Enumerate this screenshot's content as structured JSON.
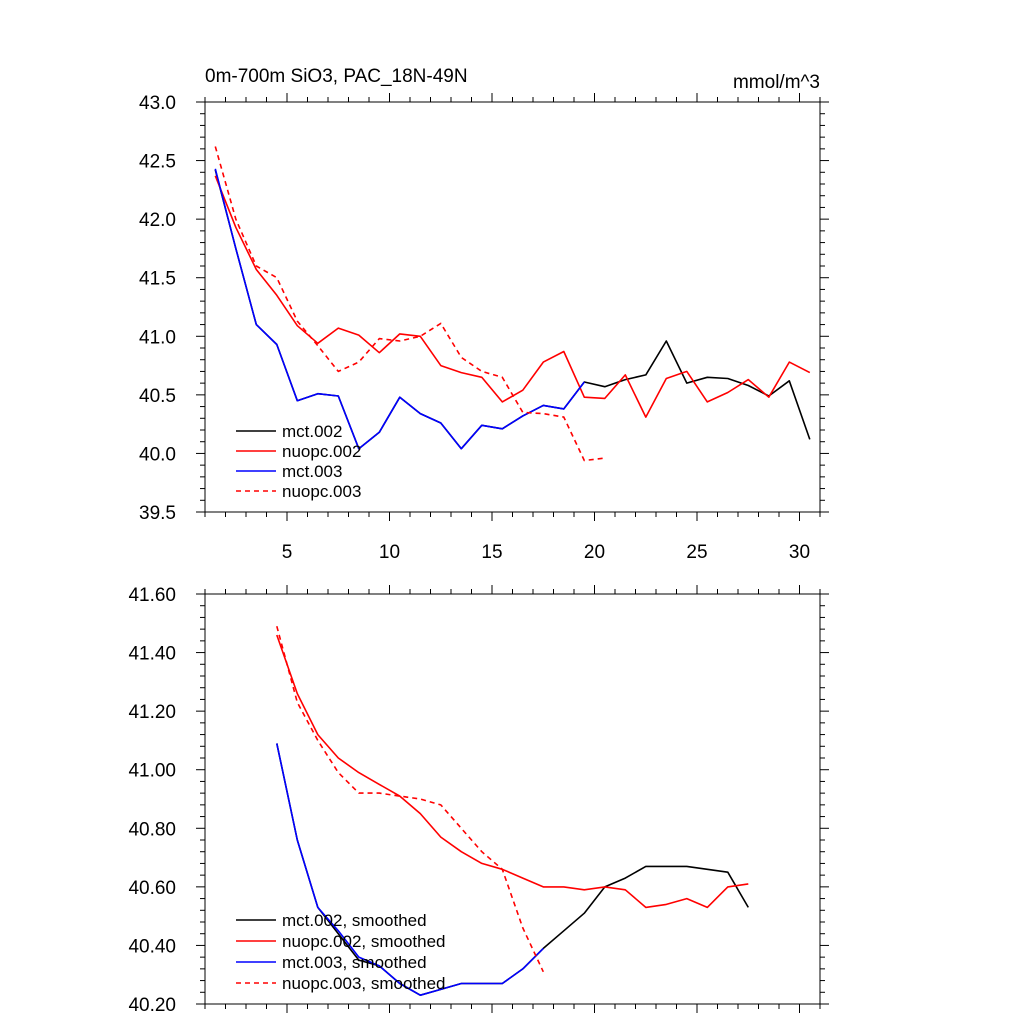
{
  "chart_data": [
    {
      "type": "line",
      "title": "0m-700m SiO3, PAC_18N-49N",
      "units": "mmol/m^3",
      "xlim": [
        1,
        31
      ],
      "ylim": [
        39.5,
        43.0
      ],
      "x_ticks": [
        5,
        10,
        15,
        20,
        25,
        30
      ],
      "y_ticks": [
        "39.5",
        "40.0",
        "40.5",
        "41.0",
        "41.5",
        "42.0",
        "42.5",
        "43.0"
      ],
      "legend_position": "bottom-left",
      "series": [
        {
          "name": "mct.002",
          "color": "#000000",
          "dash": "solid",
          "x": [
            1.5,
            2.5,
            3.5,
            4.5,
            5.5,
            6.5,
            7.5,
            8.5,
            9.5,
            10.5,
            11.5,
            12.5,
            13.5,
            14.5,
            15.5,
            16.5,
            17.5,
            18.5,
            19.5,
            20.5,
            21.5,
            22.5,
            23.5,
            24.5,
            25.5,
            26.5,
            27.5,
            28.5,
            29.5,
            30.5
          ],
          "y": [
            42.42,
            41.75,
            41.1,
            40.93,
            40.45,
            40.51,
            40.49,
            40.04,
            40.18,
            40.48,
            40.34,
            40.26,
            40.04,
            40.24,
            40.21,
            40.32,
            40.41,
            40.38,
            40.61,
            40.57,
            40.63,
            40.67,
            40.96,
            40.6,
            40.65,
            40.64,
            40.58,
            40.49,
            40.62,
            40.12
          ]
        },
        {
          "name": "nuopc.002",
          "color": "#ff0000",
          "dash": "solid",
          "x": [
            1.5,
            2.5,
            3.5,
            4.5,
            5.5,
            6.5,
            7.5,
            8.5,
            9.5,
            10.5,
            11.5,
            12.5,
            13.5,
            14.5,
            15.5,
            16.5,
            17.5,
            18.5,
            19.5,
            20.5,
            21.5,
            22.5,
            23.5,
            24.5,
            25.5,
            26.5,
            27.5,
            28.5,
            29.5,
            30.5
          ],
          "y": [
            42.37,
            41.93,
            41.57,
            41.35,
            41.09,
            40.94,
            41.07,
            41.01,
            40.86,
            41.02,
            41.0,
            40.75,
            40.69,
            40.65,
            40.44,
            40.54,
            40.78,
            40.87,
            40.48,
            40.47,
            40.67,
            40.31,
            40.64,
            40.7,
            40.44,
            40.52,
            40.63,
            40.48,
            40.78,
            40.69
          ]
        },
        {
          "name": "mct.003",
          "color": "#0000ff",
          "dash": "solid",
          "x": [
            1.5,
            2.5,
            3.5,
            4.5,
            5.5,
            6.5,
            7.5,
            8.5,
            9.5,
            10.5,
            11.5,
            12.5,
            13.5,
            14.5,
            15.5,
            16.5,
            17.5,
            18.5,
            19.5
          ],
          "y": [
            42.43,
            41.75,
            41.1,
            40.93,
            40.45,
            40.51,
            40.49,
            40.04,
            40.18,
            40.48,
            40.34,
            40.26,
            40.04,
            40.24,
            40.21,
            40.32,
            40.41,
            40.38,
            40.61
          ]
        },
        {
          "name": "nuopc.003",
          "color": "#ff0000",
          "dash": "dashed",
          "x": [
            1.5,
            2.5,
            3.5,
            4.5,
            5.5,
            6.5,
            7.5,
            8.5,
            9.5,
            10.5,
            11.5,
            12.5,
            13.5,
            14.5,
            15.5,
            16.5,
            17.5,
            18.5,
            19.5,
            20.5
          ],
          "y": [
            42.62,
            42.0,
            41.6,
            41.5,
            41.13,
            40.92,
            40.7,
            40.78,
            40.98,
            40.96,
            41.0,
            41.11,
            40.82,
            40.7,
            40.65,
            40.35,
            40.34,
            40.31,
            39.94,
            39.96
          ]
        }
      ]
    },
    {
      "type": "line",
      "xlim": [
        1,
        31
      ],
      "ylim": [
        40.2,
        41.6
      ],
      "x_ticks": [
        5,
        10,
        15,
        20,
        25,
        30
      ],
      "x_ticks_labeled": false,
      "y_ticks": [
        "40.20",
        "40.40",
        "40.60",
        "40.80",
        "41.00",
        "41.20",
        "41.40",
        "41.60"
      ],
      "legend_position": "bottom-left",
      "series": [
        {
          "name": "mct.002, smoothed",
          "color": "#000000",
          "dash": "solid",
          "x": [
            4.5,
            5.5,
            6.5,
            7.5,
            8.5,
            9.5,
            10.5,
            11.5,
            12.5,
            13.5,
            14.5,
            15.5,
            16.5,
            17.5,
            18.5,
            19.5,
            20.5,
            21.5,
            22.5,
            23.5,
            24.5,
            25.5,
            26.5,
            27.5
          ],
          "y": [
            41.09,
            40.76,
            40.53,
            40.44,
            40.35,
            40.33,
            40.27,
            40.23,
            40.25,
            40.27,
            40.27,
            40.27,
            40.32,
            40.39,
            40.45,
            40.51,
            40.6,
            40.63,
            40.67,
            40.67,
            40.67,
            40.66,
            40.65,
            40.53
          ]
        },
        {
          "name": "nuopc.002, smoothed",
          "color": "#ff0000",
          "dash": "solid",
          "x": [
            4.5,
            5.5,
            6.5,
            7.5,
            8.5,
            9.5,
            10.5,
            11.5,
            12.5,
            13.5,
            14.5,
            15.5,
            16.5,
            17.5,
            18.5,
            19.5,
            20.5,
            21.5,
            22.5,
            23.5,
            24.5,
            25.5,
            26.5,
            27.5
          ],
          "y": [
            41.46,
            41.26,
            41.12,
            41.04,
            40.99,
            40.95,
            40.91,
            40.85,
            40.77,
            40.72,
            40.68,
            40.66,
            40.63,
            40.6,
            40.6,
            40.59,
            40.6,
            40.59,
            40.53,
            40.54,
            40.56,
            40.53,
            40.6,
            40.61
          ]
        },
        {
          "name": "mct.003, smoothed",
          "color": "#0000ff",
          "dash": "solid",
          "x": [
            4.5,
            5.5,
            6.5,
            7.5,
            8.5,
            9.5,
            10.5,
            11.5,
            12.5,
            13.5,
            14.5,
            15.5,
            16.5,
            17.5
          ],
          "y": [
            41.09,
            40.76,
            40.53,
            40.45,
            40.36,
            40.33,
            40.27,
            40.23,
            40.25,
            40.27,
            40.27,
            40.27,
            40.32,
            40.39
          ]
        },
        {
          "name": "nuopc.003, smoothed",
          "color": "#ff0000",
          "dash": "dashed",
          "x": [
            4.5,
            5.5,
            6.5,
            7.5,
            8.5,
            9.5,
            10.5,
            11.5,
            12.5,
            13.5,
            14.5,
            15.5,
            16.5,
            17.5
          ],
          "y": [
            41.49,
            41.23,
            41.1,
            40.99,
            40.92,
            40.92,
            40.91,
            40.9,
            40.88,
            40.8,
            40.72,
            40.66,
            40.46,
            40.31
          ]
        }
      ]
    }
  ]
}
